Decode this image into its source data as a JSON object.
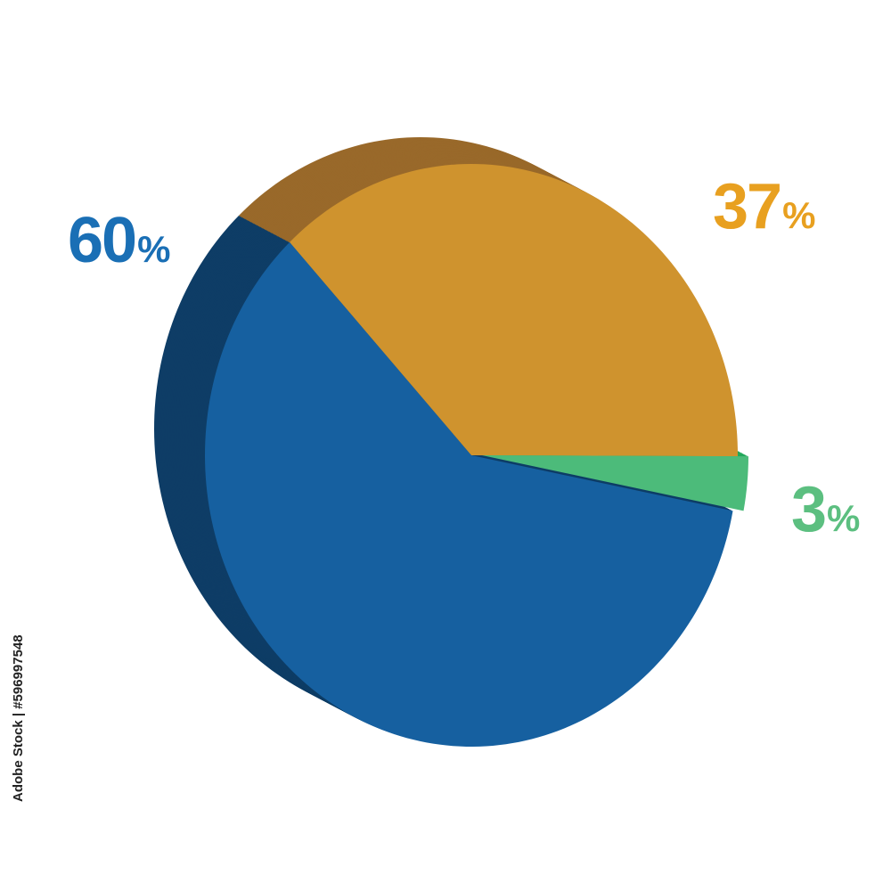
{
  "chart_data": {
    "type": "pie",
    "style": "3d",
    "title": "",
    "slices": [
      {
        "label": "37",
        "unit": "%",
        "value": 37,
        "color": "#cf932e",
        "side_color": "#99692a",
        "label_color": "#e8a020",
        "exploded": false
      },
      {
        "label": "3",
        "unit": "%",
        "value": 3,
        "color": "#4cbb7a",
        "side_color": "#22a85a",
        "label_color": "#5cbf80",
        "exploded": true
      },
      {
        "label": "60",
        "unit": "%",
        "value": 60,
        "color": "#1660a0",
        "side_color": "#0e3d66",
        "label_color": "#1a6fb5",
        "exploded": false
      }
    ],
    "legend": "none"
  },
  "watermark": "Adobe Stock | #596997548"
}
